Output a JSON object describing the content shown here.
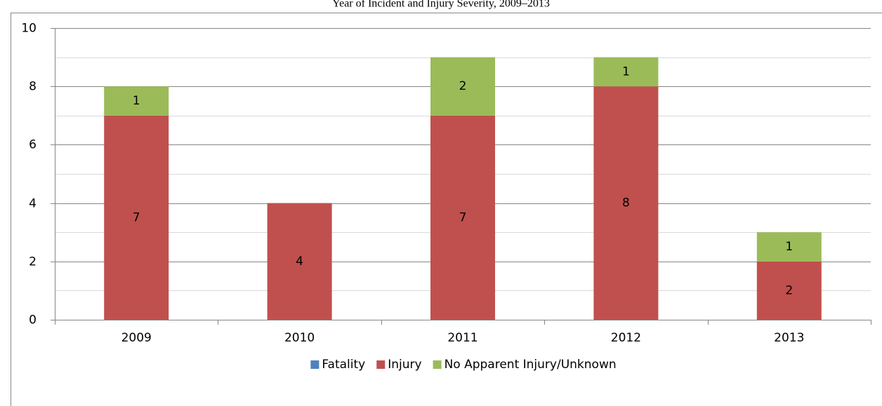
{
  "chart_data": {
    "type": "stacked_bar",
    "title": "Year of Incident and Injury Severity, 2009–2013",
    "categories": [
      "2009",
      "2010",
      "2011",
      "2012",
      "2013"
    ],
    "series": [
      {
        "name": "Fatality",
        "color": "#4f81bd",
        "values": [
          0,
          0,
          0,
          0,
          0
        ]
      },
      {
        "name": "Injury",
        "color": "#c0504d",
        "values": [
          7,
          4,
          7,
          8,
          2
        ]
      },
      {
        "name": "No Apparent Injury/Unknown",
        "color": "#9bbb59",
        "values": [
          1,
          0,
          2,
          1,
          1
        ]
      }
    ],
    "ylim": [
      0,
      10
    ],
    "yticks": [
      0,
      2,
      4,
      6,
      8,
      10
    ],
    "minor_yticks": [
      1,
      3,
      5,
      7,
      9
    ],
    "grid": true,
    "legend": "bottom"
  }
}
